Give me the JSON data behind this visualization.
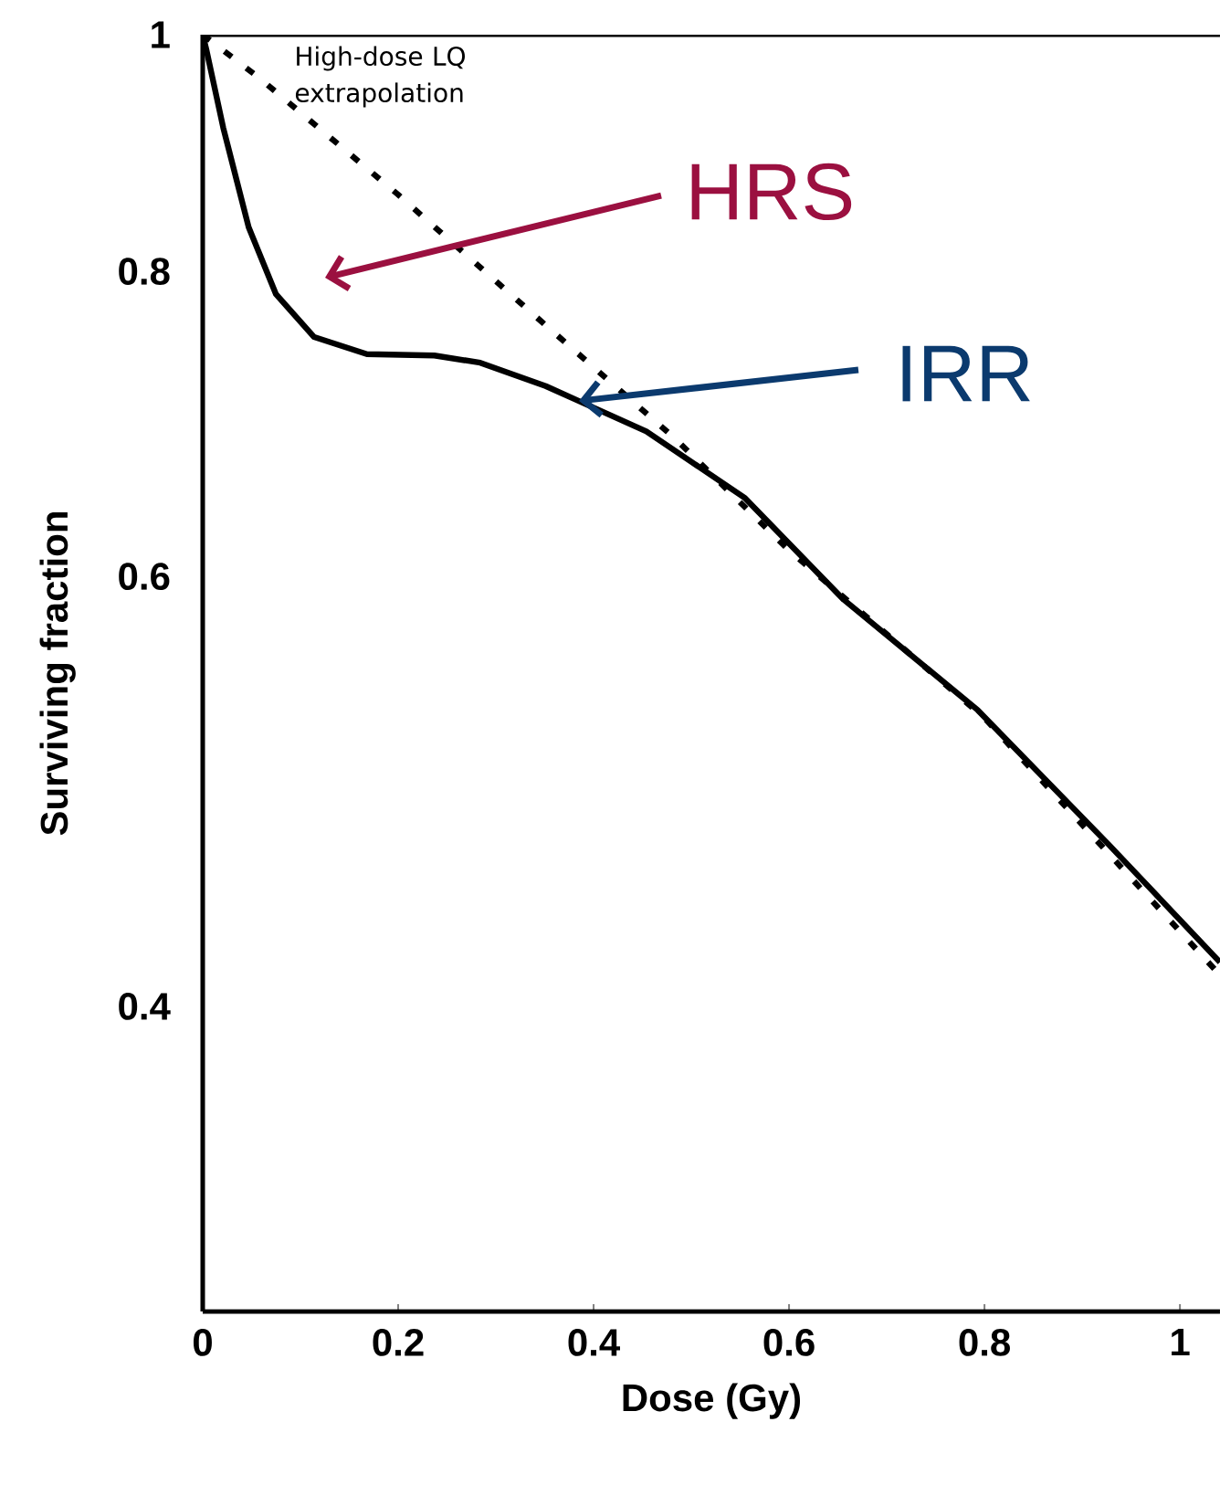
{
  "chart_data": {
    "type": "line",
    "xlabel": "Dose (Gy)",
    "ylabel": "Surviving fraction",
    "log": "y",
    "xlim": [
      0,
      1.041
    ],
    "ylim": [
      0.3,
      1
    ],
    "xticks": [
      0,
      0.2,
      0.4,
      0.6,
      0.8,
      1
    ],
    "yticks": [
      0.4,
      0.6,
      0.8,
      1
    ],
    "grid": false,
    "marker": "none",
    "series": [
      {
        "color": "#000000",
        "line_style": "solid",
        "x": [
          0,
          0.004,
          0.021,
          0.047,
          0.075,
          0.114,
          0.168,
          0.237,
          0.284,
          0.351,
          0.385,
          0.454,
          0.555,
          0.656,
          0.793,
          0.927,
          1.041
        ],
        "values": [
          1,
          0.985,
          0.916,
          0.834,
          0.783,
          0.752,
          0.74,
          0.739,
          0.734,
          0.718,
          0.708,
          0.688,
          0.646,
          0.587,
          0.529,
          0.466,
          0.417
        ]
      },
      {
        "name": "High-dose LQ extrapolation",
        "color": "#000000",
        "line_style": "dashed",
        "x": [
          0,
          0.058,
          0.2,
          0.342,
          0.484,
          0.6,
          0.8,
          1.041
        ],
        "values": [
          1,
          0.96,
          0.86,
          0.766,
          0.683,
          0.615,
          0.525,
          0.412
        ]
      }
    ],
    "annotations": [
      "HRS",
      {
        "text": "IRR",
        "x": 0.385,
        "y": 0.708
      }
    ]
  }
}
